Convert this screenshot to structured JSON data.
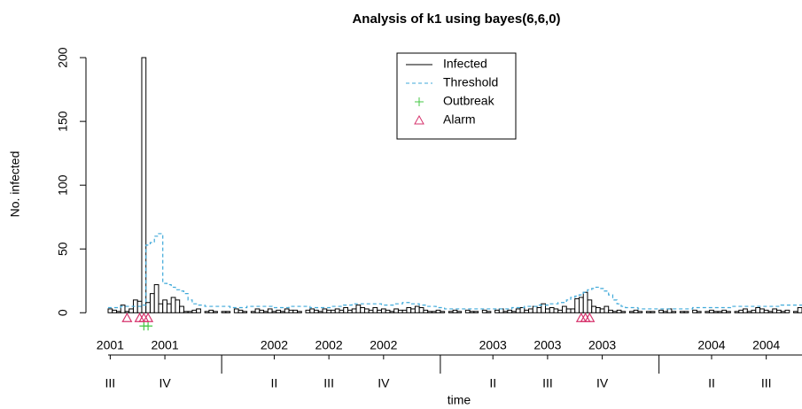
{
  "chart_data": {
    "type": "bar",
    "title": "Analysis of k1 using bayes(6,6,0)",
    "ylabel": "No. infected",
    "xlabel": "time",
    "xlim": [
      0.5,
      165.5
    ],
    "ylim": [
      -13,
      207
    ],
    "yticks": [
      0,
      50,
      100,
      150,
      200
    ],
    "year_labels": [
      {
        "value": 1,
        "label": "2001"
      },
      {
        "value": 14,
        "label": "2001"
      },
      {
        "value": 40,
        "label": "2002"
      },
      {
        "value": 53,
        "label": "2002"
      },
      {
        "value": 66,
        "label": "2002"
      },
      {
        "value": 92,
        "label": "2003"
      },
      {
        "value": 105,
        "label": "2003"
      },
      {
        "value": 118,
        "label": "2003"
      },
      {
        "value": 144,
        "label": "2004"
      },
      {
        "value": 157,
        "label": "2004"
      }
    ],
    "quarter_labels": [
      {
        "value": 1,
        "label": "III"
      },
      {
        "value": 14,
        "label": "IV"
      },
      {
        "value": 40,
        "label": "II"
      },
      {
        "value": 53,
        "label": "III"
      },
      {
        "value": 66,
        "label": "IV"
      },
      {
        "value": 92,
        "label": "II"
      },
      {
        "value": 105,
        "label": "III"
      },
      {
        "value": 118,
        "label": "IV"
      },
      {
        "value": 144,
        "label": "II"
      },
      {
        "value": 157,
        "label": "III"
      }
    ],
    "major_ticks": [
      27.5,
      79.5,
      131.5
    ],
    "series": [
      {
        "name": "Infected",
        "color": "#000000",
        "values": [
          3,
          2,
          1,
          6,
          1,
          3,
          10,
          9,
          200,
          8,
          15,
          22,
          7,
          10,
          7,
          12,
          10,
          5,
          1,
          1,
          2,
          3,
          0,
          1,
          2,
          1,
          0,
          1,
          1,
          0,
          3,
          2,
          1,
          0,
          1,
          3,
          2,
          1,
          3,
          1,
          2,
          1,
          3,
          2,
          2,
          1,
          0,
          2,
          3,
          2,
          1,
          3,
          2,
          2,
          3,
          2,
          4,
          2,
          3,
          6,
          4,
          3,
          2,
          4,
          2,
          3,
          2,
          1,
          3,
          2,
          2,
          4,
          3,
          5,
          4,
          2,
          1,
          1,
          2,
          1,
          0,
          1,
          2,
          1,
          0,
          2,
          1,
          1,
          0,
          2,
          1,
          0,
          2,
          3,
          1,
          2,
          1,
          3,
          4,
          2,
          3,
          5,
          4,
          7,
          3,
          4,
          3,
          2,
          5,
          3,
          3,
          11,
          12,
          16,
          10,
          5,
          4,
          3,
          5,
          2,
          1,
          2,
          1,
          0,
          1,
          2,
          1,
          0,
          1,
          1,
          0,
          2,
          1,
          3,
          1,
          0,
          1,
          1,
          0,
          2,
          1,
          0,
          1,
          2,
          1,
          1,
          2,
          1,
          0,
          1,
          2,
          3,
          1,
          2,
          4,
          3,
          2,
          1,
          3,
          2,
          1,
          2,
          0,
          1,
          4
        ]
      },
      {
        "name": "Threshold",
        "color": "#3fa9d9",
        "values": [
          4,
          4,
          4,
          5,
          5,
          5,
          5,
          5,
          6,
          53,
          55,
          60,
          62,
          23,
          22,
          20,
          18,
          17,
          15,
          10,
          7,
          6,
          6,
          5,
          5,
          5,
          5,
          5,
          5,
          4,
          4,
          4,
          4,
          5,
          5,
          5,
          5,
          5,
          5,
          4,
          4,
          4,
          4,
          5,
          5,
          5,
          5,
          5,
          4,
          4,
          4,
          4,
          4,
          5,
          5,
          5,
          6,
          6,
          7,
          7,
          7,
          7,
          7,
          7,
          7,
          6,
          6,
          6,
          7,
          7,
          8,
          8,
          7,
          7,
          6,
          6,
          5,
          5,
          4,
          4,
          3,
          3,
          3,
          3,
          3,
          3,
          3,
          3,
          3,
          3,
          3,
          3,
          3,
          3,
          3,
          3,
          4,
          4,
          4,
          5,
          5,
          5,
          6,
          6,
          6,
          7,
          7,
          8,
          8,
          10,
          12,
          13,
          14,
          16,
          18,
          19,
          20,
          19,
          17,
          14,
          10,
          7,
          5,
          4,
          4,
          4,
          3,
          3,
          3,
          3,
          3,
          3,
          3,
          3,
          3,
          3,
          3,
          3,
          3,
          4,
          4,
          4,
          4,
          4,
          4,
          4,
          4,
          4,
          5,
          5,
          5,
          5,
          5,
          5,
          5,
          5,
          5,
          5,
          5,
          5,
          6,
          6,
          6,
          6,
          6
        ]
      },
      {
        "name": "Outbreak",
        "color": "#44c744",
        "x": [
          9,
          10
        ]
      },
      {
        "name": "Alarm",
        "color": "#d6336c",
        "x": [
          5,
          8,
          9,
          10,
          113,
          114,
          115
        ]
      }
    ]
  }
}
